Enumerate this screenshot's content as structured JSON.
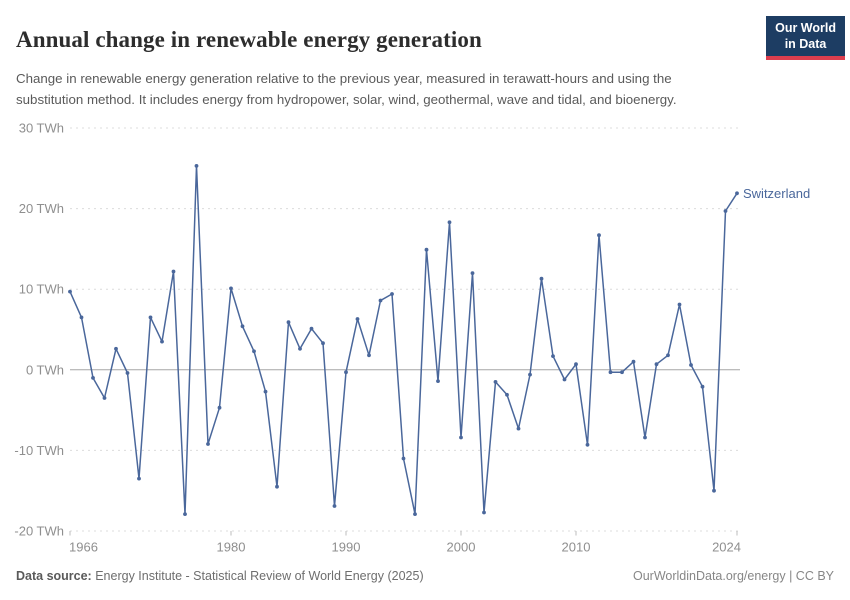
{
  "header": {
    "title": "Annual change in renewable energy generation",
    "subtitle": "Change in renewable energy generation relative to the previous year, measured in terawatt-hours and using the substitution method. It includes energy from hydropower, solar, wind, geothermal, wave and tidal, and bioenergy.",
    "logo": {
      "line1": "Our World",
      "line2": "in Data"
    }
  },
  "chart_data": {
    "type": "line",
    "title": "Annual change in renewable energy generation",
    "ylabel": "TWh",
    "xlabel": "",
    "xlim": [
      1966,
      2024
    ],
    "ylim": [
      -20,
      30
    ],
    "grid": "horizontal dashed",
    "zero_line": true,
    "legend_position": "end-of-line label",
    "x_ticks": [
      1966,
      1980,
      1990,
      2000,
      2010,
      2024
    ],
    "y_tick_values": [
      30,
      20,
      10,
      0,
      -10,
      -20
    ],
    "y_ticks": [
      "30 TWh",
      "20 TWh",
      "10 TWh",
      "0 TWh",
      "-10 TWh",
      "-20 TWh"
    ],
    "series": [
      {
        "name": "Switzerland",
        "color": "#4a679b",
        "x": [
          1966,
          1967,
          1968,
          1969,
          1970,
          1971,
          1972,
          1973,
          1974,
          1975,
          1976,
          1977,
          1978,
          1979,
          1980,
          1981,
          1982,
          1983,
          1984,
          1985,
          1986,
          1987,
          1988,
          1989,
          1990,
          1991,
          1992,
          1993,
          1994,
          1995,
          1996,
          1997,
          1998,
          1999,
          2000,
          2001,
          2002,
          2003,
          2004,
          2005,
          2006,
          2007,
          2008,
          2009,
          2010,
          2011,
          2012,
          2013,
          2014,
          2015,
          2016,
          2017,
          2018,
          2019,
          2020,
          2021,
          2022,
          2023,
          2024
        ],
        "values": [
          9.7,
          6.5,
          -1.0,
          -3.5,
          2.6,
          -0.4,
          -13.5,
          6.5,
          3.5,
          12.2,
          -17.9,
          25.3,
          -9.2,
          -4.7,
          10.1,
          5.4,
          2.3,
          -2.7,
          -14.5,
          5.9,
          2.6,
          5.1,
          3.3,
          -16.9,
          -0.3,
          6.3,
          1.8,
          8.6,
          9.4,
          -11.0,
          -17.9,
          14.9,
          -1.4,
          18.3,
          -8.4,
          12.0,
          -17.7,
          -1.5,
          -3.1,
          -7.3,
          -0.6,
          11.3,
          1.7,
          -1.2,
          0.7,
          -9.3,
          16.7,
          -0.3,
          -0.3,
          1.0,
          -8.4,
          0.7,
          1.8,
          8.1,
          0.6,
          -2.1,
          -15.0,
          19.7,
          21.9
        ]
      }
    ]
  },
  "footer": {
    "source_label": "Data source:",
    "source_rest": "Energy Institute - Statistical Review of World Energy (2025)",
    "credit": "OurWorldinData.org/energy | CC BY"
  },
  "colors": {
    "series_blue": "#4a679b",
    "logo_navy": "#1d3d63",
    "logo_red": "#dc3e4e",
    "zero_line": "#a6a6a6",
    "gridline": "#dcdcdc",
    "axis_text": "#8f8f8f"
  }
}
